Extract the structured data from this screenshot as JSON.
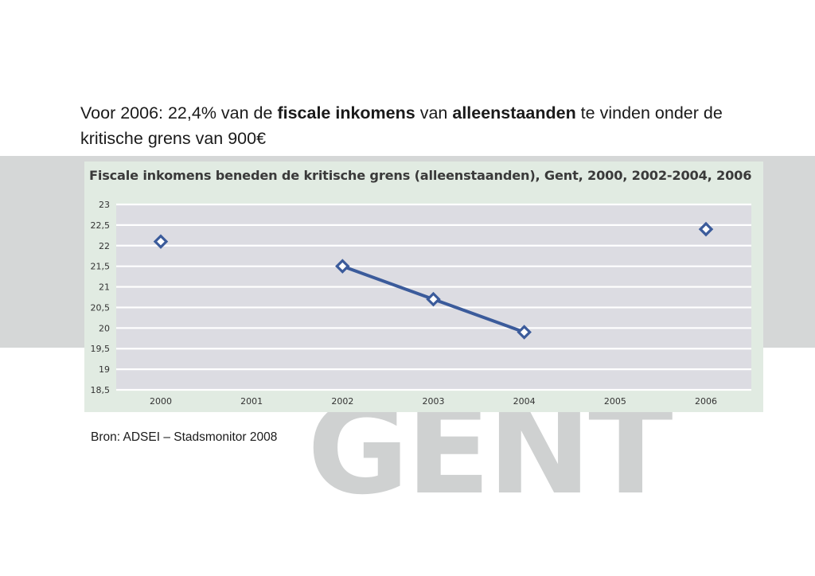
{
  "intro": {
    "part1": "Voor 2006: 22,4% van de ",
    "bold1": "fiscale inkomens",
    "part2": " van ",
    "bold2": "alleenstaanden",
    "part3": " te vinden onder de kritische grens van 900€"
  },
  "source": "Bron: ADSEI – Stadsmonitor 2008",
  "watermark": "GENT",
  "colors": {
    "band": "#d5d7d7",
    "panel": "#e1ebe2",
    "plot_bg": "#dcdce2",
    "series": "#3b5b9b"
  },
  "chart_data": {
    "type": "line",
    "title": "Fiscale inkomens beneden de kritische grens (alleenstaanden), Gent, 2000, 2002-2004, 2006",
    "xlabel": "",
    "ylabel": "",
    "categories": [
      "2000",
      "2001",
      "2002",
      "2003",
      "2004",
      "2005",
      "2006"
    ],
    "series": [
      {
        "values": [
          22.1,
          null,
          21.5,
          20.7,
          19.9,
          null,
          22.4
        ]
      }
    ],
    "ylim": [
      18.5,
      23
    ],
    "yticks": [
      23,
      22.5,
      22,
      21.5,
      21,
      20.5,
      20,
      19.5,
      19,
      18.5
    ],
    "ytick_labels": [
      "23",
      "22,5",
      "22",
      "21,5",
      "21",
      "20,5",
      "20",
      "19,5",
      "19",
      "18,5"
    ],
    "grid": true,
    "legend": "none"
  }
}
